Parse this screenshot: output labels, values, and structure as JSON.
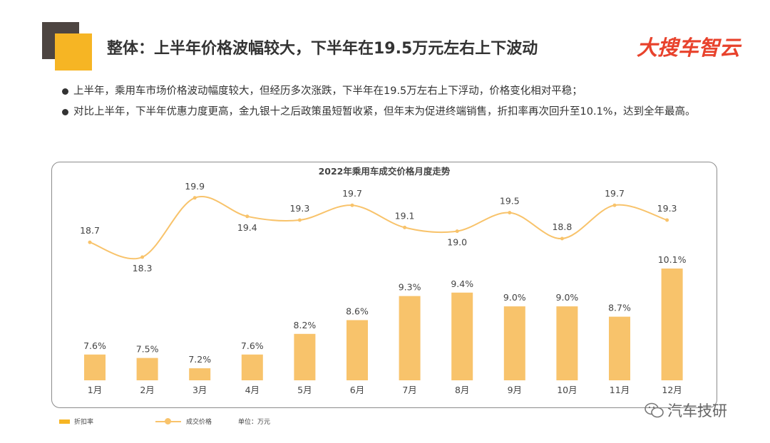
{
  "header": {
    "title": "整体：上半年价格波幅较大，下半年在19.5万元左右上下波动",
    "brand": "大搜车智云"
  },
  "bullets": [
    "上半年，乘用车市场价格波动幅度较大，但经历多次涨跌，下半年在19.5万左右上下浮动，价格变化相对平稳；",
    "对比上半年，下半年优惠力度更高，金九银十之后政策虽短暂收紧，但年末为促进终端销售，折扣率再次回升至10.1%，达到全年最高。"
  ],
  "chart_data": {
    "type": "bar",
    "title": "2022年乘用车成交价格月度走势",
    "categories": [
      "1月",
      "2月",
      "3月",
      "4月",
      "5月",
      "6月",
      "7月",
      "8月",
      "9月",
      "10月",
      "11月",
      "12月"
    ],
    "series": [
      {
        "name": "折扣率",
        "type": "bar",
        "values": [
          7.6,
          7.5,
          7.2,
          7.6,
          8.2,
          8.6,
          9.3,
          9.4,
          9.0,
          9.0,
          8.7,
          10.1
        ],
        "labels": [
          "7.6%",
          "7.5%",
          "7.2%",
          "7.6%",
          "8.2%",
          "8.6%",
          "9.3%",
          "9.4%",
          "9.0%",
          "9.0%",
          "8.7%",
          "10.1%"
        ],
        "color": "#f8c36b"
      },
      {
        "name": "成交价格",
        "type": "line",
        "values": [
          18.7,
          18.3,
          19.9,
          19.4,
          19.3,
          19.7,
          19.1,
          19.0,
          19.5,
          18.8,
          19.7,
          19.3
        ],
        "labels": [
          "18.7",
          "18.3",
          "19.9",
          "19.4",
          "19.3",
          "19.7",
          "19.1",
          "19.0",
          "19.5",
          "18.8",
          "19.7",
          "19.3"
        ],
        "color": "#f8c36b"
      }
    ],
    "unit_note": "单位：万元",
    "legend_position": "bottom-left",
    "grid": false
  },
  "watermark": "汽车技研",
  "colors": {
    "accent": "#f6b524",
    "dark_block": "#4d4541",
    "brand": "#e8422c",
    "chart_series": "#f8c36b"
  }
}
